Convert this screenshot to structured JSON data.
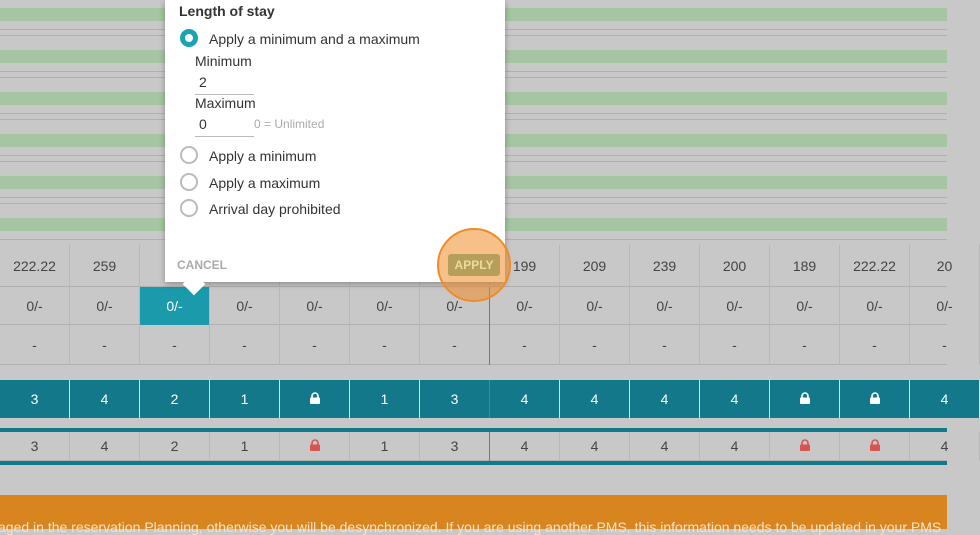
{
  "popup": {
    "title": "Length of stay",
    "options": [
      "Apply a minimum and a maximum",
      "Apply a minimum",
      "Apply a maximum",
      "Arrival day prohibited"
    ],
    "minimum_label": "Minimum",
    "minimum_value": "2",
    "maximum_label": "Maximum",
    "maximum_value": "0",
    "maximum_hint": "0 = Unlimited",
    "cancel": "CANCEL",
    "apply": "APPLY"
  },
  "grid": {
    "prices": [
      "222.22",
      "259",
      null,
      null,
      null,
      null,
      null,
      "199",
      "209",
      "239",
      "200",
      "189",
      "222.22",
      "20"
    ],
    "availability": [
      "0/-",
      "0/-",
      "0/-",
      "0/-",
      "0/-",
      "0/-",
      "0/-",
      "0/-",
      "0/-",
      "0/-",
      "0/-",
      "0/-",
      "0/-",
      "0/-"
    ],
    "dashes": [
      "-",
      "-",
      "-",
      "-",
      "-",
      "-",
      "-",
      "-",
      "-",
      "-",
      "-",
      "-",
      "-",
      "-"
    ],
    "stay_row_a": [
      "3",
      "4",
      "2",
      "1",
      null,
      "1",
      "3",
      "4",
      "4",
      "4",
      "4",
      null,
      null,
      "4"
    ],
    "stay_row_b": [
      "3",
      "4",
      "2",
      "1",
      null,
      "1",
      "3",
      "4",
      "4",
      "4",
      "4",
      null,
      null,
      "4"
    ]
  },
  "banner": {
    "text": "aged in the reservation Planning, otherwise you will be desynchronized. If you are using another PMS, this information needs to be updated in your PMS"
  }
}
